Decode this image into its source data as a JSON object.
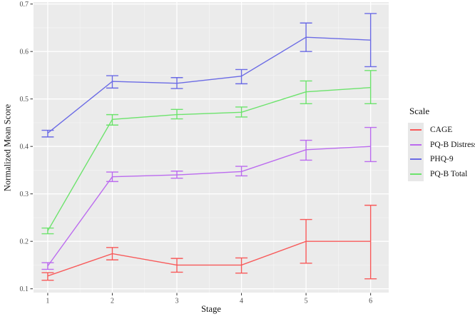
{
  "chart_data": {
    "type": "line",
    "title": "",
    "xlabel": "Stage",
    "ylabel": "Normalized Mean Score",
    "legend_title": "Scale",
    "legend_position": "right",
    "grid": true,
    "panel_bg": "#EBEBEB",
    "grid_major_color": "#FFFFFF",
    "grid_minor_color": "#F5F5F5",
    "tick_color": "#333333",
    "tick_label_color": "#4D4D4D",
    "legend_key_bg": "#E8E8E8",
    "xticks": [
      "1",
      "2",
      "3",
      "4",
      "5",
      "6"
    ],
    "yticks": [
      "0.1",
      "0.2",
      "0.3",
      "0.4",
      "0.5",
      "0.6",
      "0.7"
    ],
    "xlim": [
      0.78,
      6.28
    ],
    "ylim": [
      0.092,
      0.704
    ],
    "x": [
      1,
      2,
      3,
      4,
      5,
      6
    ],
    "series": [
      {
        "name": "CAGE",
        "color": "#F85A5A",
        "values": [
          0.127,
          0.174,
          0.15,
          0.15,
          0.2,
          0.2
        ],
        "err_low": [
          0.118,
          0.161,
          0.135,
          0.133,
          0.154,
          0.121
        ],
        "err_high": [
          0.134,
          0.187,
          0.164,
          0.165,
          0.246,
          0.276
        ]
      },
      {
        "name": "PQ-B Distress",
        "color": "#BB6BEF",
        "values": [
          0.148,
          0.336,
          0.34,
          0.347,
          0.393,
          0.4
        ],
        "err_low": [
          0.141,
          0.326,
          0.333,
          0.338,
          0.371,
          0.368
        ],
        "err_high": [
          0.155,
          0.346,
          0.348,
          0.358,
          0.413,
          0.44
        ]
      },
      {
        "name": "PHQ-9",
        "color": "#6B6BE5",
        "values": [
          0.428,
          0.537,
          0.533,
          0.548,
          0.63,
          0.624
        ],
        "err_low": [
          0.42,
          0.523,
          0.522,
          0.532,
          0.6,
          0.568
        ],
        "err_high": [
          0.434,
          0.549,
          0.545,
          0.562,
          0.66,
          0.68
        ]
      },
      {
        "name": "PQ-B Total",
        "color": "#6CE36C",
        "values": [
          0.222,
          0.457,
          0.467,
          0.472,
          0.515,
          0.524
        ],
        "err_low": [
          0.216,
          0.445,
          0.458,
          0.462,
          0.49,
          0.49
        ],
        "err_high": [
          0.228,
          0.467,
          0.478,
          0.483,
          0.538,
          0.56
        ]
      }
    ]
  }
}
